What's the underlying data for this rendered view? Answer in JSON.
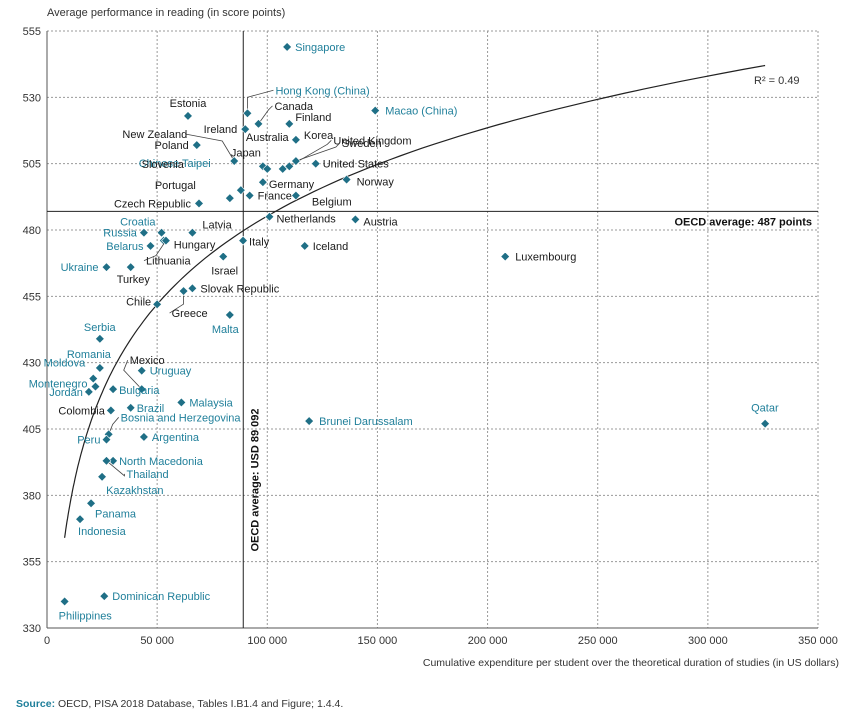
{
  "chart_data": {
    "type": "scatter",
    "ylabel": "Average performance in reading (in score points)",
    "xlabel": "Cumulative expenditure per student over the theoretical duration of studies (in US dollars)",
    "xlim": [
      0,
      350000
    ],
    "ylim": [
      330,
      555
    ],
    "xticks": [
      0,
      50000,
      100000,
      150000,
      200000,
      250000,
      300000,
      350000
    ],
    "xtick_labels": [
      "0",
      "50 000",
      "100 000",
      "150 000",
      "200 000",
      "250 000",
      "300 000",
      "350 000"
    ],
    "yticks": [
      330,
      355,
      380,
      405,
      430,
      455,
      480,
      505,
      530,
      555
    ],
    "ytick_labels": [
      "330",
      "355",
      "380",
      "405",
      "430",
      "455",
      "480",
      "505",
      "530",
      "555"
    ],
    "grid": true,
    "marker_color": "#1f6f86",
    "oecd_label_color": "#1a1a1a",
    "partner_label_color": "#1f7f9a",
    "oecd_avg_y": 487,
    "oecd_avg_y_label": "OECD average: 487 points",
    "oecd_avg_x": 89092,
    "oecd_avg_x_label": "OECD average: USD 89 092",
    "r2_label": "R² = 0.49",
    "trend": {
      "type": "log",
      "x_from": 8000,
      "x_to": 326000
    },
    "points": [
      {
        "name": "Singapore",
        "x": 109000,
        "y": 549,
        "oecd": false
      },
      {
        "name": "Hong Kong (China)",
        "x": 91000,
        "y": 524,
        "oecd": false
      },
      {
        "name": "Macao (China)",
        "x": 149000,
        "y": 525,
        "oecd": false
      },
      {
        "name": "Estonia",
        "x": 64000,
        "y": 523,
        "oecd": true
      },
      {
        "name": "Canada",
        "x": 96000,
        "y": 520,
        "oecd": true
      },
      {
        "name": "Ireland",
        "x": 90000,
        "y": 518,
        "oecd": true
      },
      {
        "name": "Finland",
        "x": 110000,
        "y": 520,
        "oecd": true
      },
      {
        "name": "Korea",
        "x": 113000,
        "y": 514,
        "oecd": true
      },
      {
        "name": "Poland",
        "x": 68000,
        "y": 512,
        "oecd": true
      },
      {
        "name": "New Zealand",
        "x": 85000,
        "y": 506,
        "oecd": true
      },
      {
        "name": "United Kingdom",
        "x": 110000,
        "y": 504,
        "oecd": true
      },
      {
        "name": "Japan",
        "x": 98000,
        "y": 504,
        "oecd": true
      },
      {
        "name": "Australia",
        "x": 100000,
        "y": 503,
        "oecd": true
      },
      {
        "name": "Sweden",
        "x": 113000,
        "y": 506,
        "oecd": true
      },
      {
        "name": "United States",
        "x": 122000,
        "y": 505,
        "oecd": true
      },
      {
        "name": "Chinese Taipei",
        "x": 107000,
        "y": 503,
        "oecd": false
      },
      {
        "name": "Norway",
        "x": 136000,
        "y": 499,
        "oecd": true
      },
      {
        "name": "Germany",
        "x": 98000,
        "y": 498,
        "oecd": true
      },
      {
        "name": "Slovenia",
        "x": 88000,
        "y": 495,
        "oecd": true
      },
      {
        "name": "Belgium",
        "x": 113000,
        "y": 493,
        "oecd": true
      },
      {
        "name": "France",
        "x": 92000,
        "y": 493,
        "oecd": true
      },
      {
        "name": "Portugal",
        "x": 83000,
        "y": 492,
        "oecd": true
      },
      {
        "name": "Czech Republic",
        "x": 69000,
        "y": 490,
        "oecd": true
      },
      {
        "name": "Netherlands",
        "x": 101000,
        "y": 485,
        "oecd": true
      },
      {
        "name": "Austria",
        "x": 140000,
        "y": 484,
        "oecd": true
      },
      {
        "name": "Latvia",
        "x": 66000,
        "y": 479,
        "oecd": true
      },
      {
        "name": "Croatia",
        "x": 52000,
        "y": 479,
        "oecd": false
      },
      {
        "name": "Russia",
        "x": 44000,
        "y": 479,
        "oecd": false
      },
      {
        "name": "Hungary",
        "x": 53000,
        "y": 476,
        "oecd": true
      },
      {
        "name": "Belarus",
        "x": 47000,
        "y": 474,
        "oecd": false
      },
      {
        "name": "Lithuania",
        "x": 54000,
        "y": 476,
        "oecd": true
      },
      {
        "name": "Italy",
        "x": 89000,
        "y": 476,
        "oecd": true
      },
      {
        "name": "Iceland",
        "x": 117000,
        "y": 474,
        "oecd": true
      },
      {
        "name": "Israel",
        "x": 80000,
        "y": 470,
        "oecd": true
      },
      {
        "name": "Luxembourg",
        "x": 208000,
        "y": 470,
        "oecd": true
      },
      {
        "name": "Ukraine",
        "x": 27000,
        "y": 466,
        "oecd": false
      },
      {
        "name": "Turkey",
        "x": 38000,
        "y": 466,
        "oecd": true
      },
      {
        "name": "Slovak Republic",
        "x": 66000,
        "y": 458,
        "oecd": true
      },
      {
        "name": "Greece",
        "x": 62000,
        "y": 457,
        "oecd": true
      },
      {
        "name": "Chile",
        "x": 50000,
        "y": 452,
        "oecd": true
      },
      {
        "name": "Malta",
        "x": 83000,
        "y": 448,
        "oecd": false
      },
      {
        "name": "Serbia",
        "x": 24000,
        "y": 439,
        "oecd": false
      },
      {
        "name": "Romania",
        "x": 24000,
        "y": 428,
        "oecd": false
      },
      {
        "name": "Mexico",
        "x": 43000,
        "y": 420,
        "oecd": true
      },
      {
        "name": "Uruguay",
        "x": 43000,
        "y": 427,
        "oecd": false
      },
      {
        "name": "Moldova",
        "x": 21000,
        "y": 424,
        "oecd": false
      },
      {
        "name": "Montenegro",
        "x": 22000,
        "y": 421,
        "oecd": false
      },
      {
        "name": "Bulgaria",
        "x": 30000,
        "y": 420,
        "oecd": false
      },
      {
        "name": "Jordan",
        "x": 19000,
        "y": 419,
        "oecd": false
      },
      {
        "name": "Malaysia",
        "x": 61000,
        "y": 415,
        "oecd": false
      },
      {
        "name": "Colombia",
        "x": 29000,
        "y": 412,
        "oecd": true
      },
      {
        "name": "Brazil",
        "x": 38000,
        "y": 413,
        "oecd": false
      },
      {
        "name": "Brunei Darussalam",
        "x": 119000,
        "y": 408,
        "oecd": false
      },
      {
        "name": "Qatar",
        "x": 326000,
        "y": 407,
        "oecd": false
      },
      {
        "name": "Bosnia and Herzegovina",
        "x": 28000,
        "y": 403,
        "oecd": false
      },
      {
        "name": "Peru",
        "x": 27000,
        "y": 401,
        "oecd": false
      },
      {
        "name": "Argentina",
        "x": 44000,
        "y": 402,
        "oecd": false
      },
      {
        "name": "North Macedonia",
        "x": 30000,
        "y": 393,
        "oecd": false
      },
      {
        "name": "Thailand",
        "x": 27000,
        "y": 393,
        "oecd": false
      },
      {
        "name": "Kazakhstan",
        "x": 25000,
        "y": 387,
        "oecd": false
      },
      {
        "name": "Panama",
        "x": 20000,
        "y": 377,
        "oecd": false
      },
      {
        "name": "Indonesia",
        "x": 15000,
        "y": 371,
        "oecd": false
      },
      {
        "name": "Dominican Republic",
        "x": 26000,
        "y": 342,
        "oecd": false
      },
      {
        "name": "Philippines",
        "x": 8000,
        "y": 340,
        "oecd": false
      }
    ]
  },
  "source_prefix": "Source:",
  "source_text": "OECD, PISA 2018 Database, Tables I.B1.4 and Figure; 1.4.4."
}
